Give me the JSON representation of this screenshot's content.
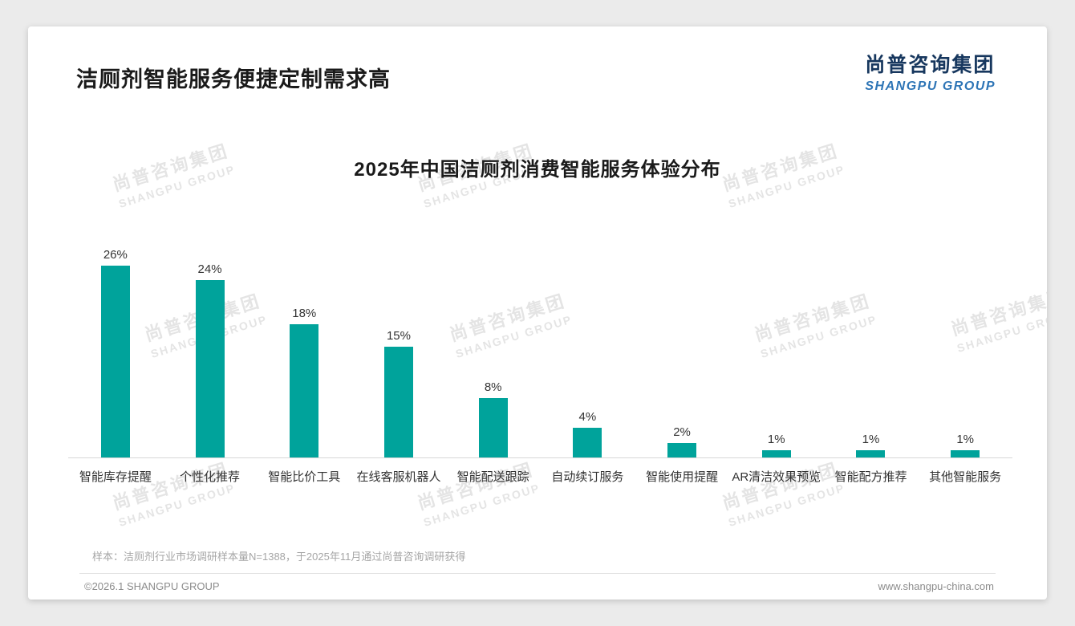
{
  "page": {
    "title": "洁厕剂智能服务便捷定制需求高",
    "logo": {
      "cn": "尚普咨询集团",
      "en": "SHANGPU GROUP"
    },
    "watermark": {
      "cn": "尚普咨询集团",
      "en": "SHANGPU GROUP"
    },
    "footnote": "样本：洁厕剂行业市场调研样本量N=1388，于2025年11月通过尚普咨询调研获得",
    "copyright": "©2026.1 SHANGPU GROUP",
    "website": "www.shangpu-china.com"
  },
  "chart_data": {
    "type": "bar",
    "title": "2025年中国洁厕剂消费智能服务体验分布",
    "categories": [
      "智能库存提醒",
      "个性化推荐",
      "智能比价工具",
      "在线客服机器人",
      "智能配送跟踪",
      "自动续订服务",
      "智能使用提醒",
      "AR清洁效果预览",
      "智能配方推荐",
      "其他智能服务"
    ],
    "values": [
      26,
      24,
      18,
      15,
      8,
      4,
      2,
      1,
      1,
      1
    ],
    "unit": "%",
    "bar_color": "#00a39b",
    "ylim": [
      0,
      28
    ],
    "grid": false,
    "legend": false,
    "value_labels": true,
    "xlabel": "",
    "ylabel": ""
  },
  "colors": {
    "accent": "#00a39b",
    "logo_navy": "#17375e",
    "logo_blue": "#2e75b6"
  }
}
